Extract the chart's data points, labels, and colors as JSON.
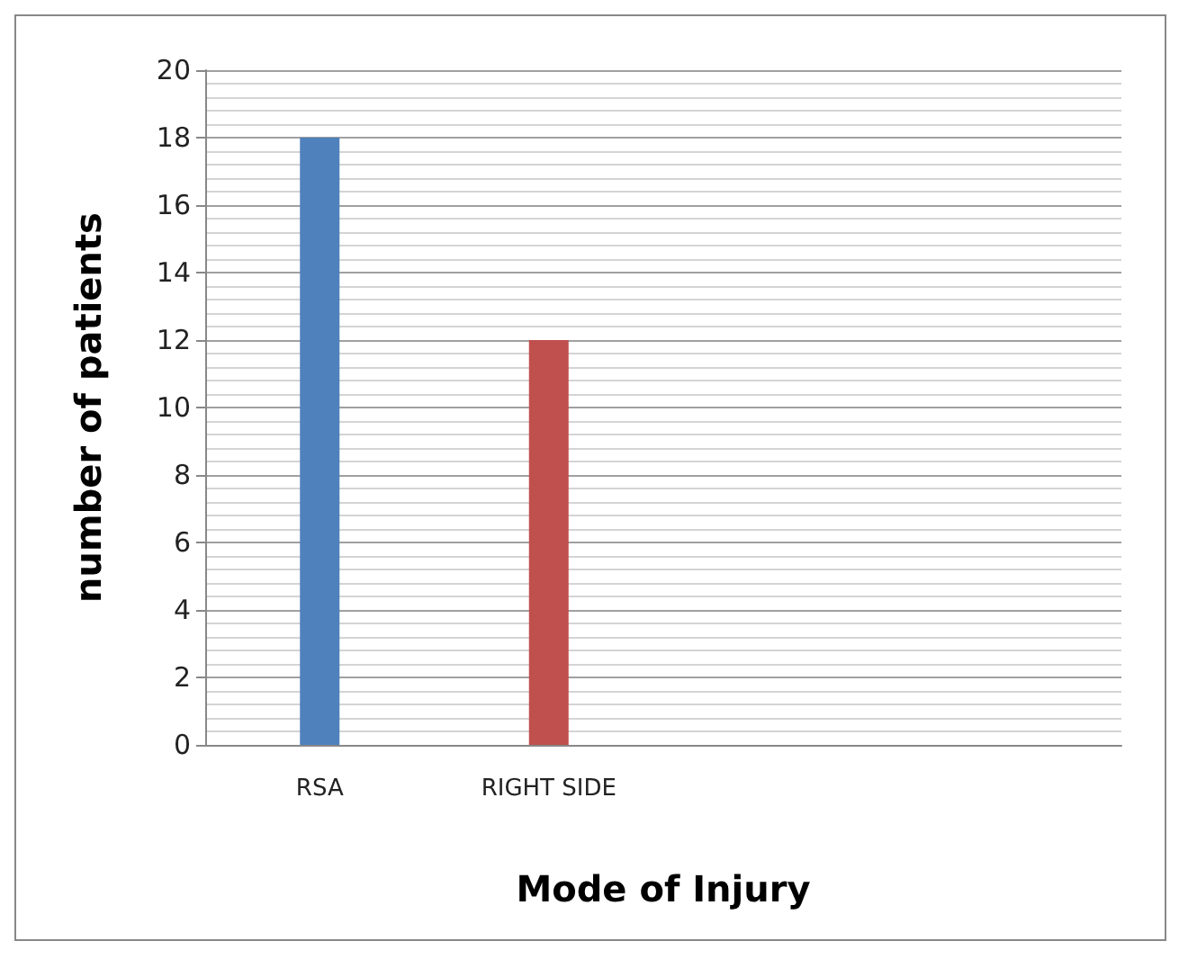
{
  "chart_data": {
    "type": "bar",
    "xlabel": "Mode of Injury",
    "ylabel": "number of patients",
    "categories": [
      "RSA",
      "RIGHT SIDE",
      null,
      null
    ],
    "values": [
      18,
      12,
      null,
      null
    ],
    "colors": [
      "#4f81bd",
      "#c0504d",
      null,
      null
    ],
    "ylim": [
      0,
      20
    ],
    "yticks": [
      0,
      2,
      4,
      6,
      8,
      10,
      12,
      14,
      16,
      18,
      20
    ],
    "grid": "y"
  }
}
